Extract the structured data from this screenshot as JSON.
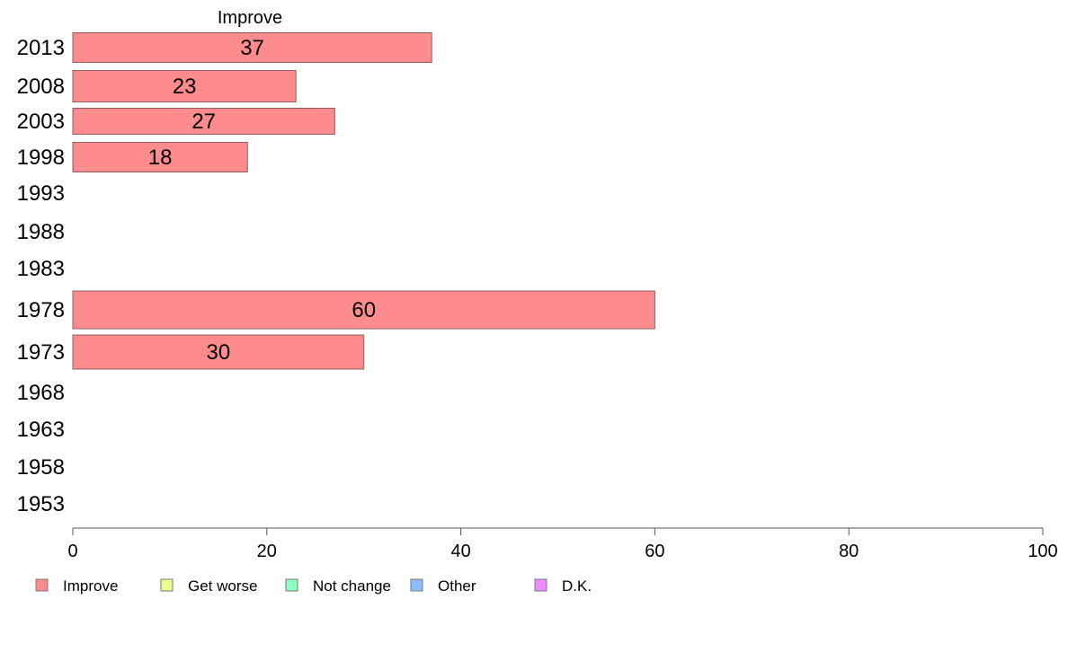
{
  "chart_data": {
    "type": "bar",
    "orientation": "horizontal",
    "series_header": "Improve",
    "categories": [
      "2013",
      "2008",
      "2003",
      "1998",
      "1993",
      "1988",
      "1983",
      "1978",
      "1973",
      "1968",
      "1963",
      "1958",
      "1953"
    ],
    "series": [
      {
        "name": "Improve",
        "color": "#ff8c8c",
        "values": [
          37,
          23,
          27,
          18,
          null,
          null,
          null,
          60,
          30,
          null,
          null,
          null,
          null
        ]
      }
    ],
    "xlim": [
      0,
      100
    ],
    "x_ticks": [
      0,
      20,
      40,
      60,
      80,
      100
    ],
    "legend": [
      {
        "label": "Improve",
        "color": "#ff8c8c"
      },
      {
        "label": "Get worse",
        "color": "#ecff8c"
      },
      {
        "label": "Not change",
        "color": "#8cffbe"
      },
      {
        "label": "Other",
        "color": "#8cbeff"
      },
      {
        "label": "D.K.",
        "color": "#ec8cff"
      }
    ],
    "legend_position": "bottom-left",
    "grid": false
  }
}
